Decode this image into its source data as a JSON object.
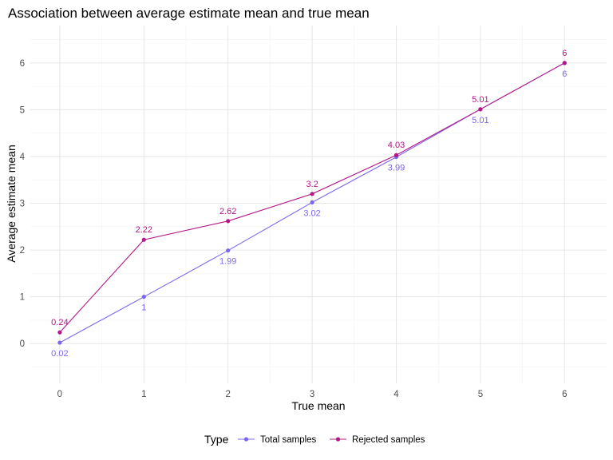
{
  "chart_data": {
    "type": "line",
    "title": "Association between average estimate mean and true mean",
    "xlabel": "True mean",
    "ylabel": "Average estimate mean",
    "x": [
      0,
      1,
      2,
      3,
      4,
      5,
      6
    ],
    "xlim": [
      -0.35,
      6.5
    ],
    "ylim": [
      -0.85,
      6.8
    ],
    "x_ticks": [
      "0",
      "1",
      "2",
      "3",
      "4",
      "5",
      "6"
    ],
    "y_ticks": [
      "0",
      "1",
      "2",
      "3",
      "4",
      "5",
      "6"
    ],
    "grid": true,
    "legend": {
      "title": "Type",
      "placement": "bottom"
    },
    "series": [
      {
        "name": "Total samples",
        "color": "#7b68ee",
        "values": [
          0.02,
          1,
          1.99,
          3.02,
          3.99,
          5.01,
          6
        ],
        "labels": [
          "0.02",
          "1",
          "1.99",
          "3.02",
          "3.99",
          "5.01",
          "6"
        ]
      },
      {
        "name": "Rejected samples",
        "color": "#b5178a",
        "values": [
          0.24,
          2.22,
          2.62,
          3.2,
          4.03,
          5.01,
          6
        ],
        "labels": [
          "0.24",
          "2.22",
          "2.62",
          "3.2",
          "4.03",
          "5.01",
          "6"
        ]
      }
    ]
  }
}
